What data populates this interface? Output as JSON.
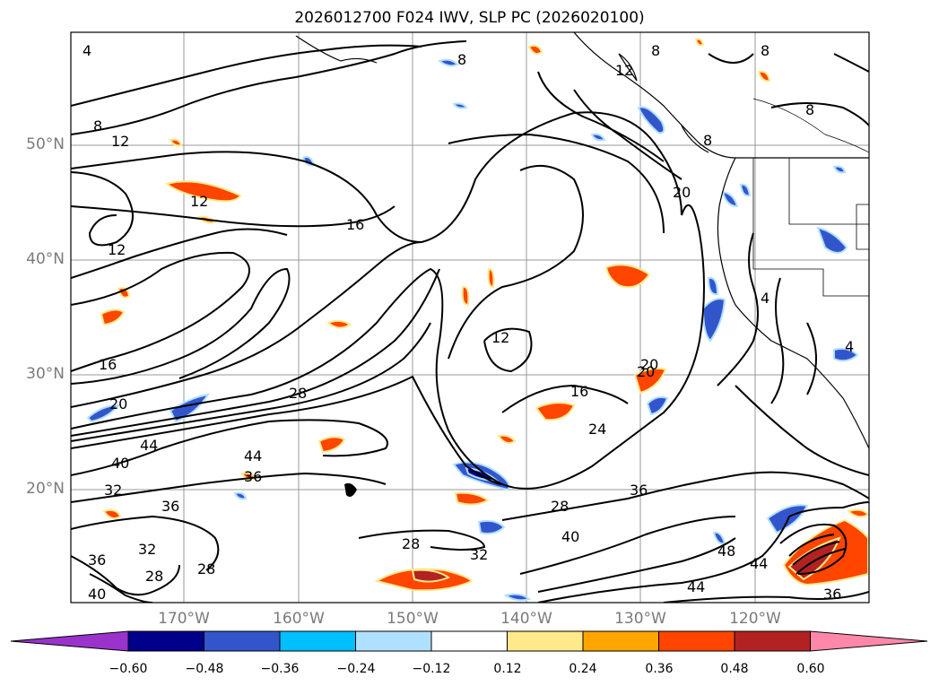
{
  "title": "2026012700 F024 IWV, SLP PC (2026020100)",
  "lat_labels": [
    "50°N",
    "40°N",
    "30°N",
    "20°N"
  ],
  "lon_labels": [
    "170°W",
    "160°W",
    "150°W",
    "140°W",
    "130°W",
    "120°W"
  ],
  "contour_labels": [
    "4",
    "8",
    "8",
    "12",
    "12",
    "12",
    "16",
    "16",
    "20",
    "20",
    "28",
    "44",
    "44",
    "40",
    "32",
    "36",
    "36",
    "32",
    "28",
    "28",
    "36",
    "40",
    "40",
    "28",
    "32",
    "28",
    "36",
    "12",
    "16",
    "24",
    "20",
    "20",
    "8",
    "8",
    "8",
    "8",
    "12",
    "48",
    "44",
    "44",
    "36",
    "4",
    "4"
  ],
  "colorbar": {
    "colors": [
      "#9933cc",
      "#00008b",
      "#3355cc",
      "#00bfff",
      "#b0e0ff",
      "#ffffff",
      "#ffe98a",
      "#ffa500",
      "#ff4500",
      "#b22222",
      "#ff88aa"
    ],
    "tick_labels": [
      "−0.60",
      "−0.48",
      "−0.36",
      "−0.24",
      "−0.12",
      "0.12",
      "0.24",
      "0.36",
      "0.48",
      "0.60"
    ]
  }
}
